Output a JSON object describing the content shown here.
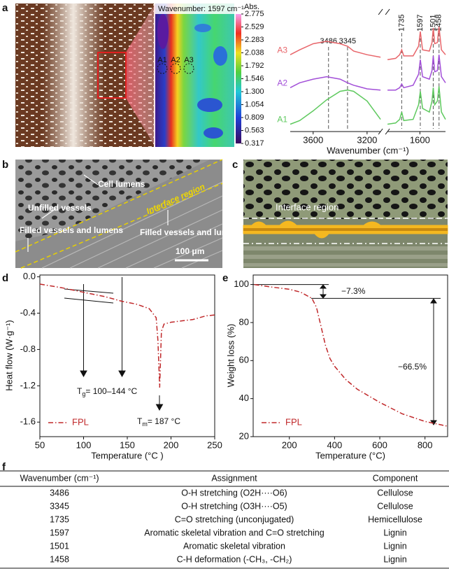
{
  "figure": {
    "panel_labels": [
      "a",
      "b",
      "c",
      "d",
      "e",
      "f"
    ],
    "sem_labels": [
      "Cell lumens",
      "Unfilled vessels",
      "Interface region",
      "Filled vessels and lumens",
      "Filled vessels and lumens",
      "100 μm"
    ],
    "scheme_label": "Interface region"
  },
  "chart_data": [
    {
      "type": "line",
      "xlabel": "Wavenumber (cm⁻¹)",
      "xlim": [
        3770,
        1410
      ],
      "xbreak": [
        3100,
        1840
      ],
      "ylim": [
        0.4,
        10.9
      ],
      "xticks": [
        3600,
        3200,
        1600
      ],
      "frame": false,
      "legend": "inline",
      "x": [
        3770,
        3700,
        3600,
        3500,
        3400,
        3345,
        3300,
        3200,
        3100,
        1840,
        1780,
        1750,
        1735,
        1720,
        1650,
        1610,
        1597,
        1580,
        1530,
        1510,
        1501,
        1490,
        1470,
        1458,
        1440,
        1410
      ],
      "markers": [
        3486,
        3345,
        1735,
        1597,
        1501,
        1458
      ],
      "series": [
        {
          "name": "A3",
          "color": "#e8656a",
          "values": [
            6.7,
            7.1,
            7.6,
            7.8,
            7.6,
            7.4,
            7.0,
            6.7,
            6.5,
            6.3,
            6.4,
            6.7,
            7.1,
            6.6,
            6.6,
            7.4,
            8.6,
            7.1,
            7.0,
            7.7,
            8.9,
            7.6,
            7.7,
            9.0,
            7.1,
            6.7
          ]
        },
        {
          "name": "A2",
          "color": "#a24fd8",
          "values": [
            4.0,
            4.4,
            4.7,
            4.9,
            4.7,
            4.4,
            4.2,
            3.9,
            3.8,
            3.8,
            3.8,
            4.0,
            4.3,
            4.0,
            4.2,
            5.1,
            6.3,
            4.9,
            4.7,
            5.4,
            6.6,
            5.3,
            5.4,
            6.7,
            4.9,
            4.4
          ]
        },
        {
          "name": "A1",
          "color": "#5ec95e",
          "values": [
            1.0,
            1.3,
            2.1,
            3.0,
            3.7,
            3.8,
            3.7,
            2.9,
            1.4,
            1.0,
            1.1,
            1.4,
            2.0,
            1.3,
            1.4,
            2.6,
            3.7,
            2.3,
            2.0,
            2.9,
            4.0,
            2.6,
            2.9,
            4.1,
            2.0,
            1.4
          ]
        }
      ]
    },
    {
      "type": "colorbar",
      "title": "Abs.",
      "label": "Wavenumber: 1597 cm⁻¹",
      "clim": [
        0.317,
        2.775
      ],
      "ticks": [
        2.775,
        2.529,
        2.283,
        2.038,
        1.792,
        1.546,
        {
          "value": 1.3,
          "label": "1.300"
        },
        1.054,
        0.809,
        0.563,
        0.317
      ],
      "points": [
        "A1",
        "A2",
        "A3"
      ]
    },
    {
      "type": "line",
      "xlabel": "Temperature (°C )",
      "ylabel": "Heat flow (W·g⁻¹)",
      "xlim": [
        50,
        250
      ],
      "ylim": [
        -1.76,
        0.02
      ],
      "xticks": [
        50,
        100,
        150,
        200,
        250
      ],
      "yticks": [
        {
          "value": 0,
          "label": "0.0"
        },
        -0.4,
        -0.8,
        -1.2,
        -1.6
      ],
      "frame": true,
      "legend": "lower left",
      "x": [
        50,
        75,
        100,
        125,
        144,
        160,
        175,
        183,
        185,
        187,
        189,
        192,
        200,
        225,
        240,
        250
      ],
      "series": [
        {
          "name": "FPL",
          "color": "#c0282a",
          "dash": "dashdot",
          "values": [
            -0.08,
            -0.12,
            -0.17,
            -0.22,
            -0.27,
            -0.3,
            -0.35,
            -0.45,
            -0.7,
            -1.22,
            -0.6,
            -0.52,
            -0.5,
            -0.47,
            -0.43,
            -0.42
          ]
        }
      ],
      "annotations": [
        {
          "symbol": "T",
          "subscript": "g",
          "text": "= 100–144 °C"
        },
        {
          "symbol": "T",
          "subscript": "m",
          "text": "= 187 °C"
        }
      ]
    },
    {
      "type": "line",
      "xlabel": "Temperature (°C)",
      "ylabel": "Weight loss (%)",
      "xlim": [
        40,
        900
      ],
      "ylim": [
        20,
        105
      ],
      "xticks": [
        200,
        400,
        600,
        800
      ],
      "yticks": [
        100,
        80,
        60,
        40,
        20
      ],
      "frame": true,
      "legend": "lower left",
      "x": [
        45,
        100,
        200,
        250,
        280,
        300,
        320,
        340,
        360,
        380,
        400,
        450,
        500,
        600,
        700,
        800,
        900
      ],
      "series": [
        {
          "name": "FPL",
          "color": "#c0282a",
          "dash": "dashdot",
          "values": [
            100,
            99,
            97.5,
            96,
            94,
            92.7,
            88,
            78,
            68,
            61,
            57,
            50,
            45,
            38,
            32,
            28,
            25.5
          ]
        }
      ],
      "annotations": [
        "−7.3%",
        "−66.5%"
      ]
    }
  ],
  "table": {
    "header": [
      "Wavenumber (cm⁻¹)",
      "Assignment",
      "Component"
    ],
    "rows": [
      [
        "3486",
        "O-H stretching (O2H····O6)",
        "Cellulose"
      ],
      [
        "3345",
        "O-H stretching (O3H····O5)",
        "Cellulose"
      ],
      [
        "1735",
        "C=O stretching (unconjugated)",
        "Hemicellulose"
      ],
      [
        "1597",
        "Aromatic skeletal vibration and C=O stretching",
        "Lignin"
      ],
      [
        "1501",
        "Aromatic skeletal vibration",
        "Lignin"
      ],
      [
        "1458",
        "C-H deformation (-CH₃, -CH₂)",
        "Lignin"
      ]
    ]
  }
}
